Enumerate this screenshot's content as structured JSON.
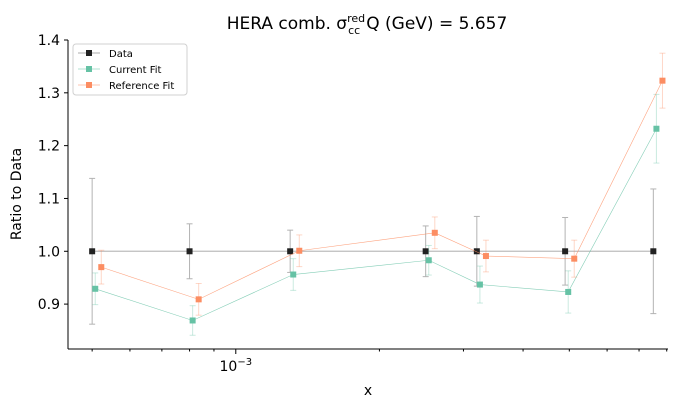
{
  "chart_data": {
    "type": "scatter",
    "title_main": "HERA comb. σ",
    "title_sup": "red",
    "title_sub": "cc",
    "title_rest": "Q (GeV) = 5.657",
    "xlabel": "x",
    "ylabel": "Ratio to Data",
    "xscale": "log",
    "xlim": [
      0.000445,
      0.00805
    ],
    "ylim": [
      0.815,
      1.4
    ],
    "yticks": [
      0.9,
      1.0,
      1.1,
      1.2,
      1.3,
      1.4
    ],
    "ytick_labels": [
      "0.9",
      "1.0",
      "1.1",
      "1.2",
      "1.3",
      "1.4"
    ],
    "xticks_major": [
      0.001
    ],
    "xtick_major_labels": [
      {
        "base": "10",
        "exp": "−3"
      }
    ],
    "x": [
      0.0005,
      0.0008,
      0.0013,
      0.0025,
      0.0032,
      0.0049,
      0.0075
    ],
    "legend_position": "upper-left",
    "grid": false,
    "series": [
      {
        "name": "Data",
        "color": "#222222",
        "x_offset": 1.0,
        "values": [
          1.0,
          1.0,
          1.0,
          1.0,
          1.0,
          1.0,
          1.0
        ],
        "errors": [
          0.138,
          0.052,
          0.04,
          0.048,
          0.066,
          0.064,
          0.118
        ]
      },
      {
        "name": "Current Fit",
        "color": "#66c2a5",
        "x_offset": 1.015,
        "values": [
          0.929,
          0.869,
          0.956,
          0.983,
          0.937,
          0.923,
          1.232
        ],
        "errors": [
          0.03,
          0.028,
          0.03,
          0.028,
          0.035,
          0.04,
          0.065
        ]
      },
      {
        "name": "Reference Fit",
        "color": "#fc8d62",
        "x_offset": 1.045,
        "values": [
          0.97,
          0.909,
          1.001,
          1.035,
          0.991,
          0.986,
          1.323
        ],
        "errors": [
          0.032,
          0.03,
          0.03,
          0.03,
          0.03,
          0.035,
          0.052
        ]
      }
    ]
  }
}
